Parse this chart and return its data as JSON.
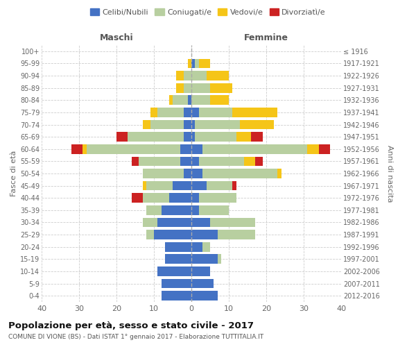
{
  "age_groups": [
    "0-4",
    "5-9",
    "10-14",
    "15-19",
    "20-24",
    "25-29",
    "30-34",
    "35-39",
    "40-44",
    "45-49",
    "50-54",
    "55-59",
    "60-64",
    "65-69",
    "70-74",
    "75-79",
    "80-84",
    "85-89",
    "90-94",
    "95-99",
    "100+"
  ],
  "birth_years": [
    "2012-2016",
    "2007-2011",
    "2002-2006",
    "1997-2001",
    "1992-1996",
    "1987-1991",
    "1982-1986",
    "1977-1981",
    "1972-1976",
    "1967-1971",
    "1962-1966",
    "1957-1961",
    "1952-1956",
    "1947-1951",
    "1942-1946",
    "1937-1941",
    "1932-1936",
    "1927-1931",
    "1922-1926",
    "1917-1921",
    "≤ 1916"
  ],
  "male": {
    "celibi": [
      8,
      8,
      9,
      7,
      7,
      10,
      9,
      8,
      6,
      5,
      2,
      3,
      3,
      2,
      2,
      2,
      1,
      0,
      0,
      0,
      0
    ],
    "coniugati": [
      0,
      0,
      0,
      0,
      0,
      2,
      4,
      4,
      7,
      7,
      11,
      11,
      25,
      15,
      9,
      7,
      4,
      2,
      2,
      0,
      0
    ],
    "vedovi": [
      0,
      0,
      0,
      0,
      0,
      0,
      0,
      0,
      0,
      1,
      0,
      0,
      1,
      0,
      2,
      2,
      1,
      2,
      2,
      1,
      0
    ],
    "divorziati": [
      0,
      0,
      0,
      0,
      0,
      0,
      0,
      0,
      3,
      0,
      0,
      2,
      3,
      3,
      0,
      0,
      0,
      0,
      0,
      0,
      0
    ]
  },
  "female": {
    "nubili": [
      7,
      6,
      5,
      7,
      3,
      7,
      5,
      2,
      2,
      4,
      3,
      2,
      3,
      1,
      1,
      2,
      0,
      0,
      0,
      1,
      0
    ],
    "coniugate": [
      0,
      0,
      0,
      1,
      2,
      10,
      12,
      8,
      10,
      7,
      20,
      12,
      28,
      11,
      12,
      9,
      5,
      5,
      4,
      1,
      0
    ],
    "vedove": [
      0,
      0,
      0,
      0,
      0,
      0,
      0,
      0,
      0,
      0,
      1,
      3,
      3,
      4,
      9,
      12,
      5,
      6,
      6,
      3,
      0
    ],
    "divorziate": [
      0,
      0,
      0,
      0,
      0,
      0,
      0,
      0,
      0,
      1,
      0,
      2,
      3,
      3,
      0,
      0,
      0,
      0,
      0,
      0,
      0
    ]
  },
  "colors": {
    "celibi_nubili": "#4472c4",
    "coniugati": "#b8cfa0",
    "vedovi": "#f5c518",
    "divorziati": "#cc2222"
  },
  "title": "Popolazione per età, sesso e stato civile - 2017",
  "subtitle": "COMUNE DI VIONE (BS) - Dati ISTAT 1° gennaio 2017 - Elaborazione TUTTITALIA.IT",
  "xlabel_left": "Maschi",
  "xlabel_right": "Femmine",
  "ylabel_left": "Fasce di età",
  "ylabel_right": "Anni di nascita",
  "xlim": 40,
  "background_color": "#ffffff",
  "grid_color": "#cccccc"
}
